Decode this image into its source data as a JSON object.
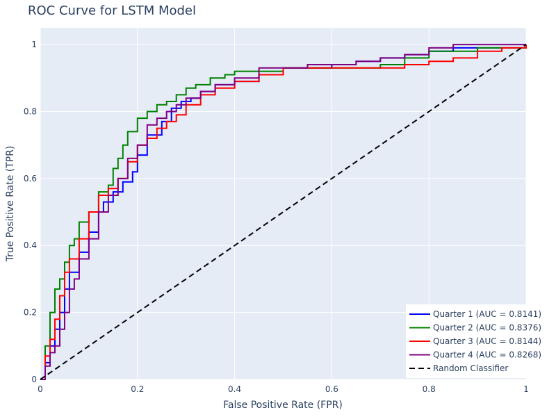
{
  "chart_data": {
    "type": "line",
    "title": "ROC Curve for LSTM Model",
    "xlabel": "False Positive Rate (FPR)",
    "ylabel": "True Positive Rate (TPR)",
    "xlim": [
      0,
      1
    ],
    "ylim": [
      0,
      1.05
    ],
    "xticks": [
      0,
      0.2,
      0.4,
      0.6,
      0.8,
      1
    ],
    "xtick_labels": [
      "0",
      "0.2",
      "0.4",
      "0.6",
      "0.8",
      "1"
    ],
    "yticks": [
      0,
      0.2,
      0.4,
      0.6,
      0.8,
      1
    ],
    "ytick_labels": [
      "0",
      "0.2",
      "0.4",
      "0.6",
      "0.8",
      "1"
    ],
    "grid": true,
    "legend_position": "bottom-right",
    "series": [
      {
        "name": "Quarter 1 (AUC = 0.8141)",
        "color": "#0000ff",
        "dash": "solid",
        "x": [
          0,
          0.01,
          0.02,
          0.03,
          0.04,
          0.05,
          0.06,
          0.08,
          0.1,
          0.12,
          0.13,
          0.15,
          0.17,
          0.19,
          0.2,
          0.22,
          0.25,
          0.27,
          0.29,
          0.31,
          0.33,
          0.36,
          0.4,
          0.45,
          0.5,
          0.55,
          0.6,
          0.65,
          0.7,
          0.75,
          0.8,
          0.85,
          0.9,
          0.95,
          1.0
        ],
        "y": [
          0,
          0.05,
          0.1,
          0.15,
          0.2,
          0.27,
          0.32,
          0.38,
          0.44,
          0.5,
          0.53,
          0.56,
          0.59,
          0.62,
          0.67,
          0.73,
          0.77,
          0.81,
          0.83,
          0.84,
          0.86,
          0.88,
          0.89,
          0.91,
          0.93,
          0.93,
          0.94,
          0.95,
          0.96,
          0.97,
          0.98,
          0.99,
          0.99,
          0.99,
          1.0
        ]
      },
      {
        "name": "Quarter 2 (AUC = 0.8376)",
        "color": "#008000",
        "dash": "solid",
        "x": [
          0,
          0.01,
          0.02,
          0.03,
          0.04,
          0.05,
          0.06,
          0.07,
          0.08,
          0.1,
          0.12,
          0.14,
          0.15,
          0.16,
          0.17,
          0.18,
          0.2,
          0.22,
          0.24,
          0.26,
          0.28,
          0.3,
          0.32,
          0.35,
          0.38,
          0.4,
          0.45,
          0.5,
          0.55,
          0.6,
          0.65,
          0.7,
          0.75,
          0.8,
          0.85,
          0.9,
          0.95,
          1.0
        ],
        "y": [
          0,
          0.1,
          0.2,
          0.27,
          0.3,
          0.35,
          0.4,
          0.42,
          0.47,
          0.5,
          0.56,
          0.58,
          0.63,
          0.66,
          0.7,
          0.74,
          0.78,
          0.8,
          0.82,
          0.83,
          0.85,
          0.87,
          0.88,
          0.9,
          0.91,
          0.92,
          0.92,
          0.93,
          0.93,
          0.93,
          0.93,
          0.94,
          0.96,
          0.98,
          0.98,
          0.99,
          0.99,
          1.0
        ]
      },
      {
        "name": "Quarter 3 (AUC = 0.8144)",
        "color": "#ff0000",
        "dash": "solid",
        "x": [
          0,
          0.01,
          0.02,
          0.03,
          0.04,
          0.05,
          0.06,
          0.08,
          0.1,
          0.12,
          0.14,
          0.16,
          0.18,
          0.2,
          0.22,
          0.24,
          0.26,
          0.28,
          0.3,
          0.33,
          0.36,
          0.4,
          0.45,
          0.5,
          0.55,
          0.6,
          0.65,
          0.7,
          0.75,
          0.8,
          0.85,
          0.9,
          0.95,
          1.0
        ],
        "y": [
          0,
          0.07,
          0.12,
          0.18,
          0.25,
          0.32,
          0.36,
          0.42,
          0.5,
          0.55,
          0.57,
          0.6,
          0.65,
          0.7,
          0.72,
          0.75,
          0.77,
          0.79,
          0.82,
          0.85,
          0.87,
          0.89,
          0.91,
          0.93,
          0.93,
          0.93,
          0.93,
          0.93,
          0.94,
          0.95,
          0.96,
          0.98,
          0.99,
          1.0
        ]
      },
      {
        "name": "Quarter 4 (AUC = 0.8268)",
        "color": "#800080",
        "dash": "solid",
        "x": [
          0,
          0.01,
          0.02,
          0.03,
          0.04,
          0.05,
          0.06,
          0.07,
          0.08,
          0.1,
          0.12,
          0.14,
          0.16,
          0.18,
          0.2,
          0.22,
          0.24,
          0.26,
          0.28,
          0.3,
          0.33,
          0.36,
          0.4,
          0.45,
          0.5,
          0.55,
          0.6,
          0.65,
          0.7,
          0.75,
          0.8,
          0.85,
          0.9,
          0.95,
          1.0
        ],
        "y": [
          0,
          0.04,
          0.08,
          0.1,
          0.15,
          0.2,
          0.27,
          0.3,
          0.36,
          0.42,
          0.5,
          0.55,
          0.6,
          0.66,
          0.7,
          0.76,
          0.78,
          0.8,
          0.82,
          0.84,
          0.86,
          0.88,
          0.9,
          0.93,
          0.93,
          0.94,
          0.94,
          0.95,
          0.96,
          0.97,
          0.99,
          1.0,
          1.0,
          1.0,
          1.0
        ]
      },
      {
        "name": "Random Classifier",
        "color": "#000000",
        "dash": "dashed",
        "x": [
          0,
          1
        ],
        "y": [
          0,
          1
        ]
      }
    ]
  }
}
